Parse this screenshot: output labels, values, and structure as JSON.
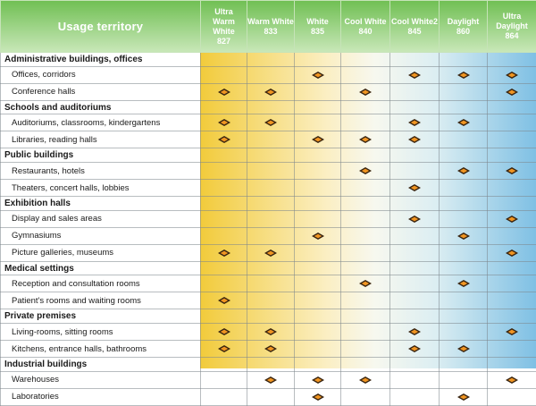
{
  "header": {
    "usage_label": "Usage territory",
    "columns": [
      {
        "name": "Ultra\nWarm White",
        "code": "827"
      },
      {
        "name": "Warm White",
        "code": "833"
      },
      {
        "name": "White",
        "code": "835"
      },
      {
        "name": "Cool White",
        "code": "840"
      },
      {
        "name": "Cool White2",
        "code": "845"
      },
      {
        "name": "Daylight",
        "code": "860"
      },
      {
        "name": "Ultra\nDaylight",
        "code": "864"
      }
    ]
  },
  "colors": {
    "header_green_top": "#6fbf52",
    "header_green_bottom": "#c8e7b8",
    "warm": "#f2cb3b",
    "cool": "#7fc0e4",
    "mark_outer": "#3a2510",
    "mark_inner": "#f09522"
  },
  "rows": [
    {
      "type": "category",
      "label": "Administrative buildings, offices",
      "marks": [
        0,
        0,
        0,
        0,
        0,
        0,
        0
      ]
    },
    {
      "type": "item",
      "label": "Offices, corridors",
      "marks": [
        0,
        0,
        1,
        0,
        1,
        1,
        1
      ]
    },
    {
      "type": "item",
      "label": "Conference halls",
      "marks": [
        1,
        1,
        0,
        1,
        0,
        0,
        1
      ]
    },
    {
      "type": "category",
      "label": "Schools and auditoriums",
      "marks": [
        0,
        0,
        0,
        0,
        0,
        0,
        0
      ]
    },
    {
      "type": "item",
      "label": "Auditoriums, classrooms, kindergartens",
      "marks": [
        1,
        1,
        0,
        0,
        1,
        1,
        0
      ]
    },
    {
      "type": "item",
      "label": "Libraries, reading halls",
      "marks": [
        1,
        0,
        1,
        1,
        1,
        0,
        0
      ]
    },
    {
      "type": "category",
      "label": "Public buildings",
      "marks": [
        0,
        0,
        0,
        0,
        0,
        0,
        0
      ]
    },
    {
      "type": "item",
      "label": "Restaurants, hotels",
      "marks": [
        0,
        0,
        0,
        1,
        0,
        1,
        1
      ]
    },
    {
      "type": "item",
      "label": "Theaters, concert halls, lobbies",
      "marks": [
        0,
        0,
        0,
        0,
        1,
        0,
        0
      ]
    },
    {
      "type": "category",
      "label": "Exhibition halls",
      "marks": [
        0,
        0,
        0,
        0,
        0,
        0,
        0
      ]
    },
    {
      "type": "item",
      "label": "Display and sales areas",
      "marks": [
        0,
        0,
        0,
        0,
        1,
        0,
        1
      ]
    },
    {
      "type": "item",
      "label": "Gymnasiums",
      "marks": [
        0,
        0,
        1,
        0,
        0,
        1,
        0
      ]
    },
    {
      "type": "item",
      "label": "Picture galleries, museums",
      "marks": [
        1,
        1,
        0,
        0,
        0,
        0,
        1
      ]
    },
    {
      "type": "category",
      "label": "Medical settings",
      "marks": [
        0,
        0,
        0,
        0,
        0,
        0,
        0
      ]
    },
    {
      "type": "item",
      "label": "Reception and consultation rooms",
      "marks": [
        0,
        0,
        0,
        1,
        0,
        1,
        0
      ]
    },
    {
      "type": "item",
      "label": "Patient's rooms and waiting rooms",
      "marks": [
        1,
        0,
        0,
        0,
        0,
        0,
        0
      ]
    },
    {
      "type": "category",
      "label": "Private premises",
      "marks": [
        0,
        0,
        0,
        0,
        0,
        0,
        0
      ]
    },
    {
      "type": "item",
      "label": "Living-rooms, sitting rooms",
      "marks": [
        1,
        1,
        0,
        0,
        1,
        0,
        1
      ]
    },
    {
      "type": "item",
      "label": "Kitchens, entrance halls, bathrooms",
      "marks": [
        1,
        1,
        0,
        0,
        1,
        1,
        0
      ]
    },
    {
      "type": "category",
      "label": "Industrial buildings",
      "marks": [
        0,
        0,
        0,
        0,
        0,
        0,
        0
      ]
    },
    {
      "type": "item",
      "label": "Warehouses",
      "marks": [
        0,
        1,
        1,
        1,
        0,
        0,
        1
      ]
    },
    {
      "type": "item",
      "label": "Laboratories",
      "marks": [
        0,
        0,
        1,
        0,
        0,
        1,
        0
      ]
    }
  ]
}
